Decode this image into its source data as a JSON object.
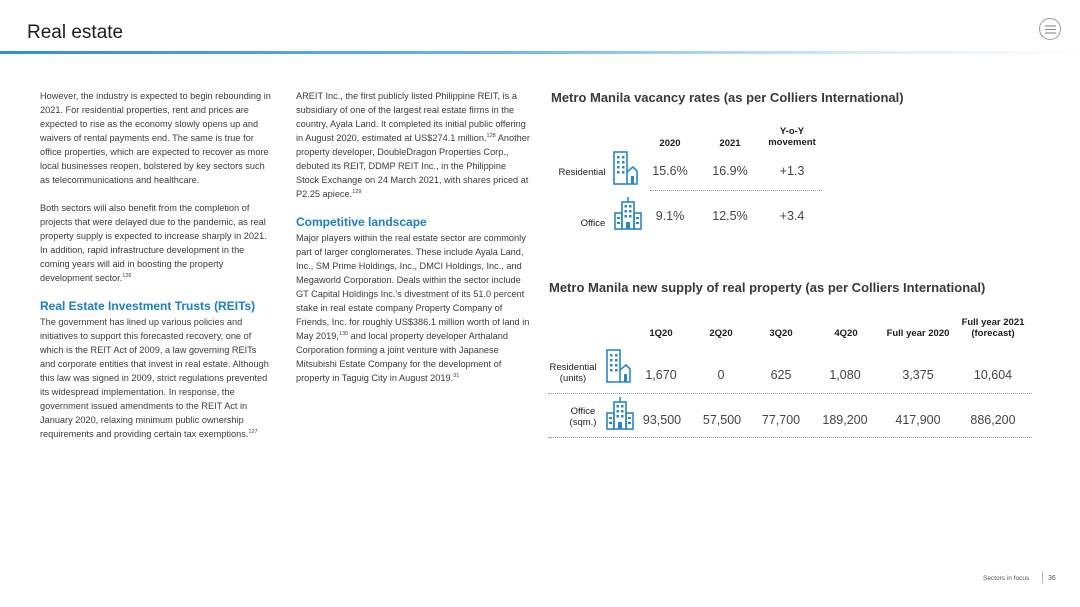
{
  "header": {
    "title": "Real estate"
  },
  "col1": {
    "p1": "However, the industry is expected to begin rebounding in 2021. For residential properties, rent and prices are expected to rise as the economy slowly opens up and waivers of rental payments end. The same is true for office properties, which are expected to recover as more local businesses reopen, bolstered by key sectors such as telecommunications and healthcare.",
    "p2": "Both sectors will also benefit from the completion of projects that were delayed due to the pandemic, as real property supply is expected to increase sharply in 2021. In addition, rapid infrastructure development in the coming years will aid in boosting the property development sector.",
    "p2_ref": "126",
    "reits_heading": "Real Estate Investment Trusts (REITs)",
    "p3": "The government has lined up various policies and initiatives to support this forecasted recovery, one of which is the REIT Act of 2009, a law governing REITs and corporate entities that invest in real estate. Although this law was signed in 2009, strict regulations prevented its widespread implementation. In response, the government issued amendments to the REIT Act in January 2020, relaxing minimum public ownership requirements and providing certain tax exemptions.",
    "p3_ref": "127"
  },
  "col2": {
    "p1_a": "AREIT Inc., the first publicly listed Philippine REIT, is a subsidiary of one of the largest real estate firms in the country, Ayala Land. It completed its initial public offering in August 2020, estimated at US$274.1 million.",
    "p1_ref1": "128",
    "p1_b": " Another property developer, DoubleDragon Properties Corp., debuted its REIT, DDMP REIT Inc., in the Philippine Stock Exchange on 24 March 2021, with shares priced at P2.25 apiece.",
    "p1_ref2": "129",
    "comp_heading": "Competitive landscape",
    "p2_a": "Major players within the real estate sector are commonly part of larger conglomerates. These include Ayala Land, Inc., SM Prime Holdings, Inc., DMCI Holdings, Inc., and Megaworld Corporation. Deals within the sector include GT Capital Holdings Inc.'s divestment of its 51.0 percent stake in real estate company Property Company of Friends, Inc. for roughly US$386.1 million worth of land in May 2019,",
    "p2_ref1": "130",
    "p2_b": " and local property developer Arthaland Corporation forming a joint venture with Japanese Mitsubishi Estate Company for the development of property in Taguig City in August 2019.",
    "p2_ref2": "31"
  },
  "vacancy": {
    "title": "Metro Manila vacancy rates (as per Colliers International)",
    "headers": [
      "2020",
      "2021",
      "Y-o-Y movement"
    ],
    "rows": [
      {
        "label": "Residential",
        "icon": "residential-building-icon",
        "values": [
          "15.6%",
          "16.9%",
          "+1.3"
        ]
      },
      {
        "label": "Office",
        "icon": "office-building-icon",
        "values": [
          "9.1%",
          "12.5%",
          "+3.4"
        ]
      }
    ]
  },
  "supply": {
    "title": "Metro Manila new supply of real property (as per Colliers International)",
    "headers": [
      "1Q20",
      "2Q20",
      "3Q20",
      "4Q20",
      "Full year 2020",
      "Full year 2021 (forecast)"
    ],
    "rows": [
      {
        "label": "Residential (units)",
        "icon": "residential-building-icon",
        "values": [
          "1,670",
          "0",
          "625",
          "1,080",
          "3,375",
          "10,604"
        ]
      },
      {
        "label": "Office (sqm.)",
        "icon": "office-building-icon",
        "values": [
          "93,500",
          "57,500",
          "77,700",
          "189,200",
          "417,900",
          "886,200"
        ]
      }
    ]
  },
  "footer": {
    "section": "Sectors in focus",
    "page": "36"
  },
  "colors": {
    "accent": "#1a7fc5",
    "icon_blue": "#2a86c9"
  }
}
